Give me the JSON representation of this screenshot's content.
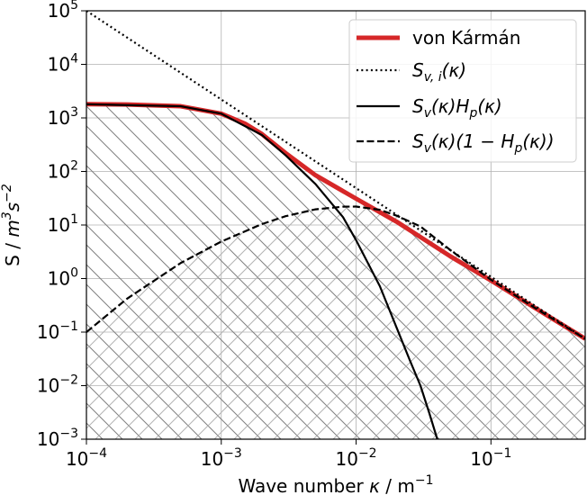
{
  "chart_data": {
    "type": "line",
    "xscale": "log",
    "yscale": "log",
    "xlim": [
      0.0001,
      0.5
    ],
    "ylim": [
      0.001,
      100000
    ],
    "xlabel": "Wave number κ / m⁻¹",
    "ylabel": "S / m³s⁻²",
    "grid": true,
    "legend_position": "top-right",
    "x_ticks": [
      {
        "value": 0.0001,
        "base": "10",
        "exp": "−4"
      },
      {
        "value": 0.001,
        "base": "10",
        "exp": "−3"
      },
      {
        "value": 0.01,
        "base": "10",
        "exp": "−2"
      },
      {
        "value": 0.1,
        "base": "10",
        "exp": "−1"
      }
    ],
    "y_ticks": [
      {
        "value": 0.001,
        "base": "10",
        "exp": "−3"
      },
      {
        "value": 0.01,
        "base": "10",
        "exp": "−2"
      },
      {
        "value": 0.1,
        "base": "10",
        "exp": "−1"
      },
      {
        "value": 1,
        "base": "10",
        "exp": "0"
      },
      {
        "value": 10,
        "base": "10",
        "exp": "1"
      },
      {
        "value": 100,
        "base": "10",
        "exp": "2"
      },
      {
        "value": 1000,
        "base": "10",
        "exp": "3"
      },
      {
        "value": 10000,
        "base": "10",
        "exp": "4"
      },
      {
        "value": 100000,
        "base": "10",
        "exp": "5"
      }
    ],
    "hatch_regions": [
      {
        "under_series": "von Kármán",
        "pattern": "diagonal-down",
        "color": "#808080"
      },
      {
        "under_series": "Sv(κ)(1−Hp(κ))",
        "pattern": "diagonal-up",
        "color": "#b4b4b4"
      }
    ],
    "series": [
      {
        "name": "von Kármán",
        "color": "#d62728",
        "style": "solid-thick",
        "x": [
          0.0001,
          0.0002,
          0.0005,
          0.001,
          0.0015,
          0.002,
          0.003,
          0.005,
          0.01,
          0.02,
          0.05,
          0.1,
          0.2,
          0.5
        ],
        "y": [
          1800,
          1780,
          1650,
          1200,
          780,
          500,
          220,
          85,
          31,
          11.5,
          2.6,
          0.92,
          0.31,
          0.075
        ]
      },
      {
        "name": "Sv,i(κ)",
        "color": "#000000",
        "style": "dotted",
        "x": [
          0.0001,
          0.5
        ],
        "y": [
          100000,
          0.075
        ]
      },
      {
        "name": "Sv(κ)Hp(κ)",
        "color": "#000000",
        "style": "solid",
        "x": [
          0.0001,
          0.0005,
          0.001,
          0.002,
          0.003,
          0.005,
          0.008,
          0.01,
          0.015,
          0.02,
          0.025,
          0.03,
          0.035,
          0.04
        ],
        "y": [
          1800,
          1650,
          1200,
          480,
          200,
          58,
          14,
          5.2,
          0.72,
          0.12,
          0.03,
          0.01,
          0.003,
          0.001
        ]
      },
      {
        "name": "Sv(κ)(1−Hp(κ))",
        "color": "#000000",
        "style": "dashed",
        "x": [
          0.0001,
          0.0002,
          0.0005,
          0.001,
          0.002,
          0.003,
          0.005,
          0.008,
          0.01,
          0.015,
          0.02,
          0.03,
          0.05,
          0.1,
          0.2,
          0.5
        ],
        "y": [
          0.1,
          0.42,
          1.95,
          4.9,
          10.4,
          14.6,
          19.6,
          22,
          22.1,
          19.2,
          14.9,
          9.4,
          3.4,
          0.95,
          0.31,
          0.075
        ]
      }
    ]
  },
  "legend": {
    "vk_label": "von Kármán",
    "svi_label": "S",
    "svi_sub": "v, i",
    "svi_tail": "(κ)",
    "svhp_label": "S",
    "svhp_sub": "v",
    "svhp_mid": "(κ)H",
    "svhp_sub2": "p",
    "svhp_tail": "(κ)",
    "svrest_label": "S",
    "svrest_sub": "v",
    "svrest_mid": "(κ)(1 − H",
    "svrest_sub2": "p",
    "svrest_tail": "(κ))"
  },
  "axes": {
    "xlabel_text": "Wave number ",
    "xlabel_kappa": "κ",
    "xlabel_unit": " / m",
    "xlabel_exp": "−1",
    "ylabel_text": "S / ",
    "ylabel_m": "m",
    "ylabel_m_exp": "3",
    "ylabel_s": "s",
    "ylabel_s_exp": "−2"
  }
}
